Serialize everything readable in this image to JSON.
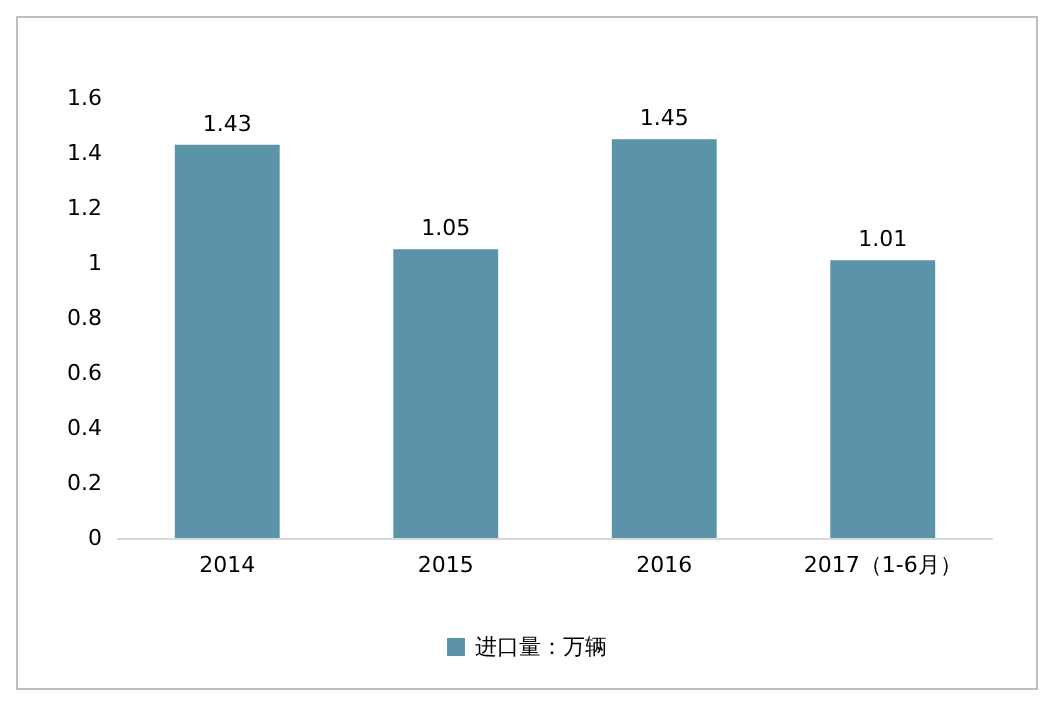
{
  "chart_data": {
    "type": "bar",
    "categories": [
      "2014",
      "2015",
      "2016",
      "2017（1-6月）"
    ],
    "series": [
      {
        "name": "进口量：万辆",
        "color": "#5b93a8",
        "values": [
          1.43,
          1.05,
          1.45,
          1.01
        ]
      }
    ],
    "ylim": [
      0,
      1.6
    ],
    "yticks": [
      0,
      0.2,
      0.4,
      0.6,
      0.8,
      1,
      1.2,
      1.4,
      1.6
    ],
    "grid": false,
    "legend": "bottom",
    "data_labels": true
  }
}
